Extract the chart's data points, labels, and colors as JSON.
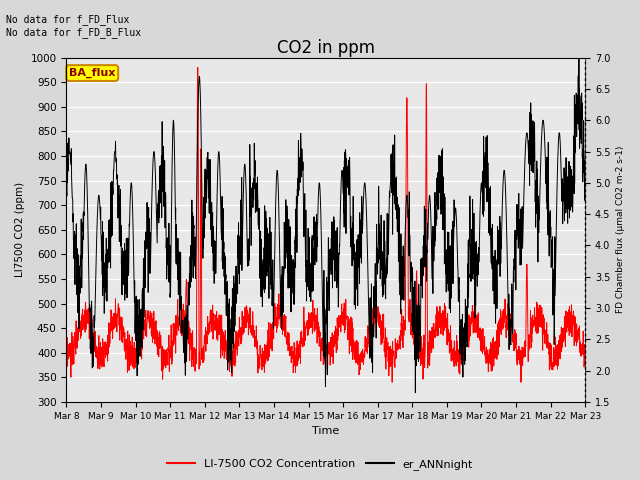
{
  "title": "CO2 in ppm",
  "xlabel": "Time",
  "ylabel_left": "LI7500 CO2 (ppm)",
  "ylabel_right": "FD Chamber flux (μmal CO2 m-2 s-1)",
  "ylim_left": [
    300,
    1000
  ],
  "ylim_right": [
    1.5,
    7.0
  ],
  "yticks_left": [
    300,
    350,
    400,
    450,
    500,
    550,
    600,
    650,
    700,
    750,
    800,
    850,
    900,
    950,
    1000
  ],
  "yticks_right": [
    1.5,
    2.0,
    2.5,
    3.0,
    3.5,
    4.0,
    4.5,
    5.0,
    5.5,
    6.0,
    6.5,
    7.0
  ],
  "xtick_labels": [
    "Mar 8",
    "Mar 9",
    "Mar 10",
    "Mar 11",
    "Mar 12",
    "Mar 13",
    "Mar 14",
    "Mar 15",
    "Mar 16",
    "Mar 17",
    "Mar 18",
    "Mar 19",
    "Mar 20",
    "Mar 21",
    "Mar 22",
    "Mar 23"
  ],
  "annotation_top": "No data for f_FD_Flux\nNo data for f͟FD͟B_Flux",
  "ba_flux_label": "BA_flux",
  "legend_entries": [
    "LI-7500 CO2 Concentration",
    "er_ANNnight"
  ],
  "background_color": "#d8d8d8",
  "plot_bg_color": "#e8e8e8",
  "note_fontsize": 7,
  "title_fontsize": 12
}
